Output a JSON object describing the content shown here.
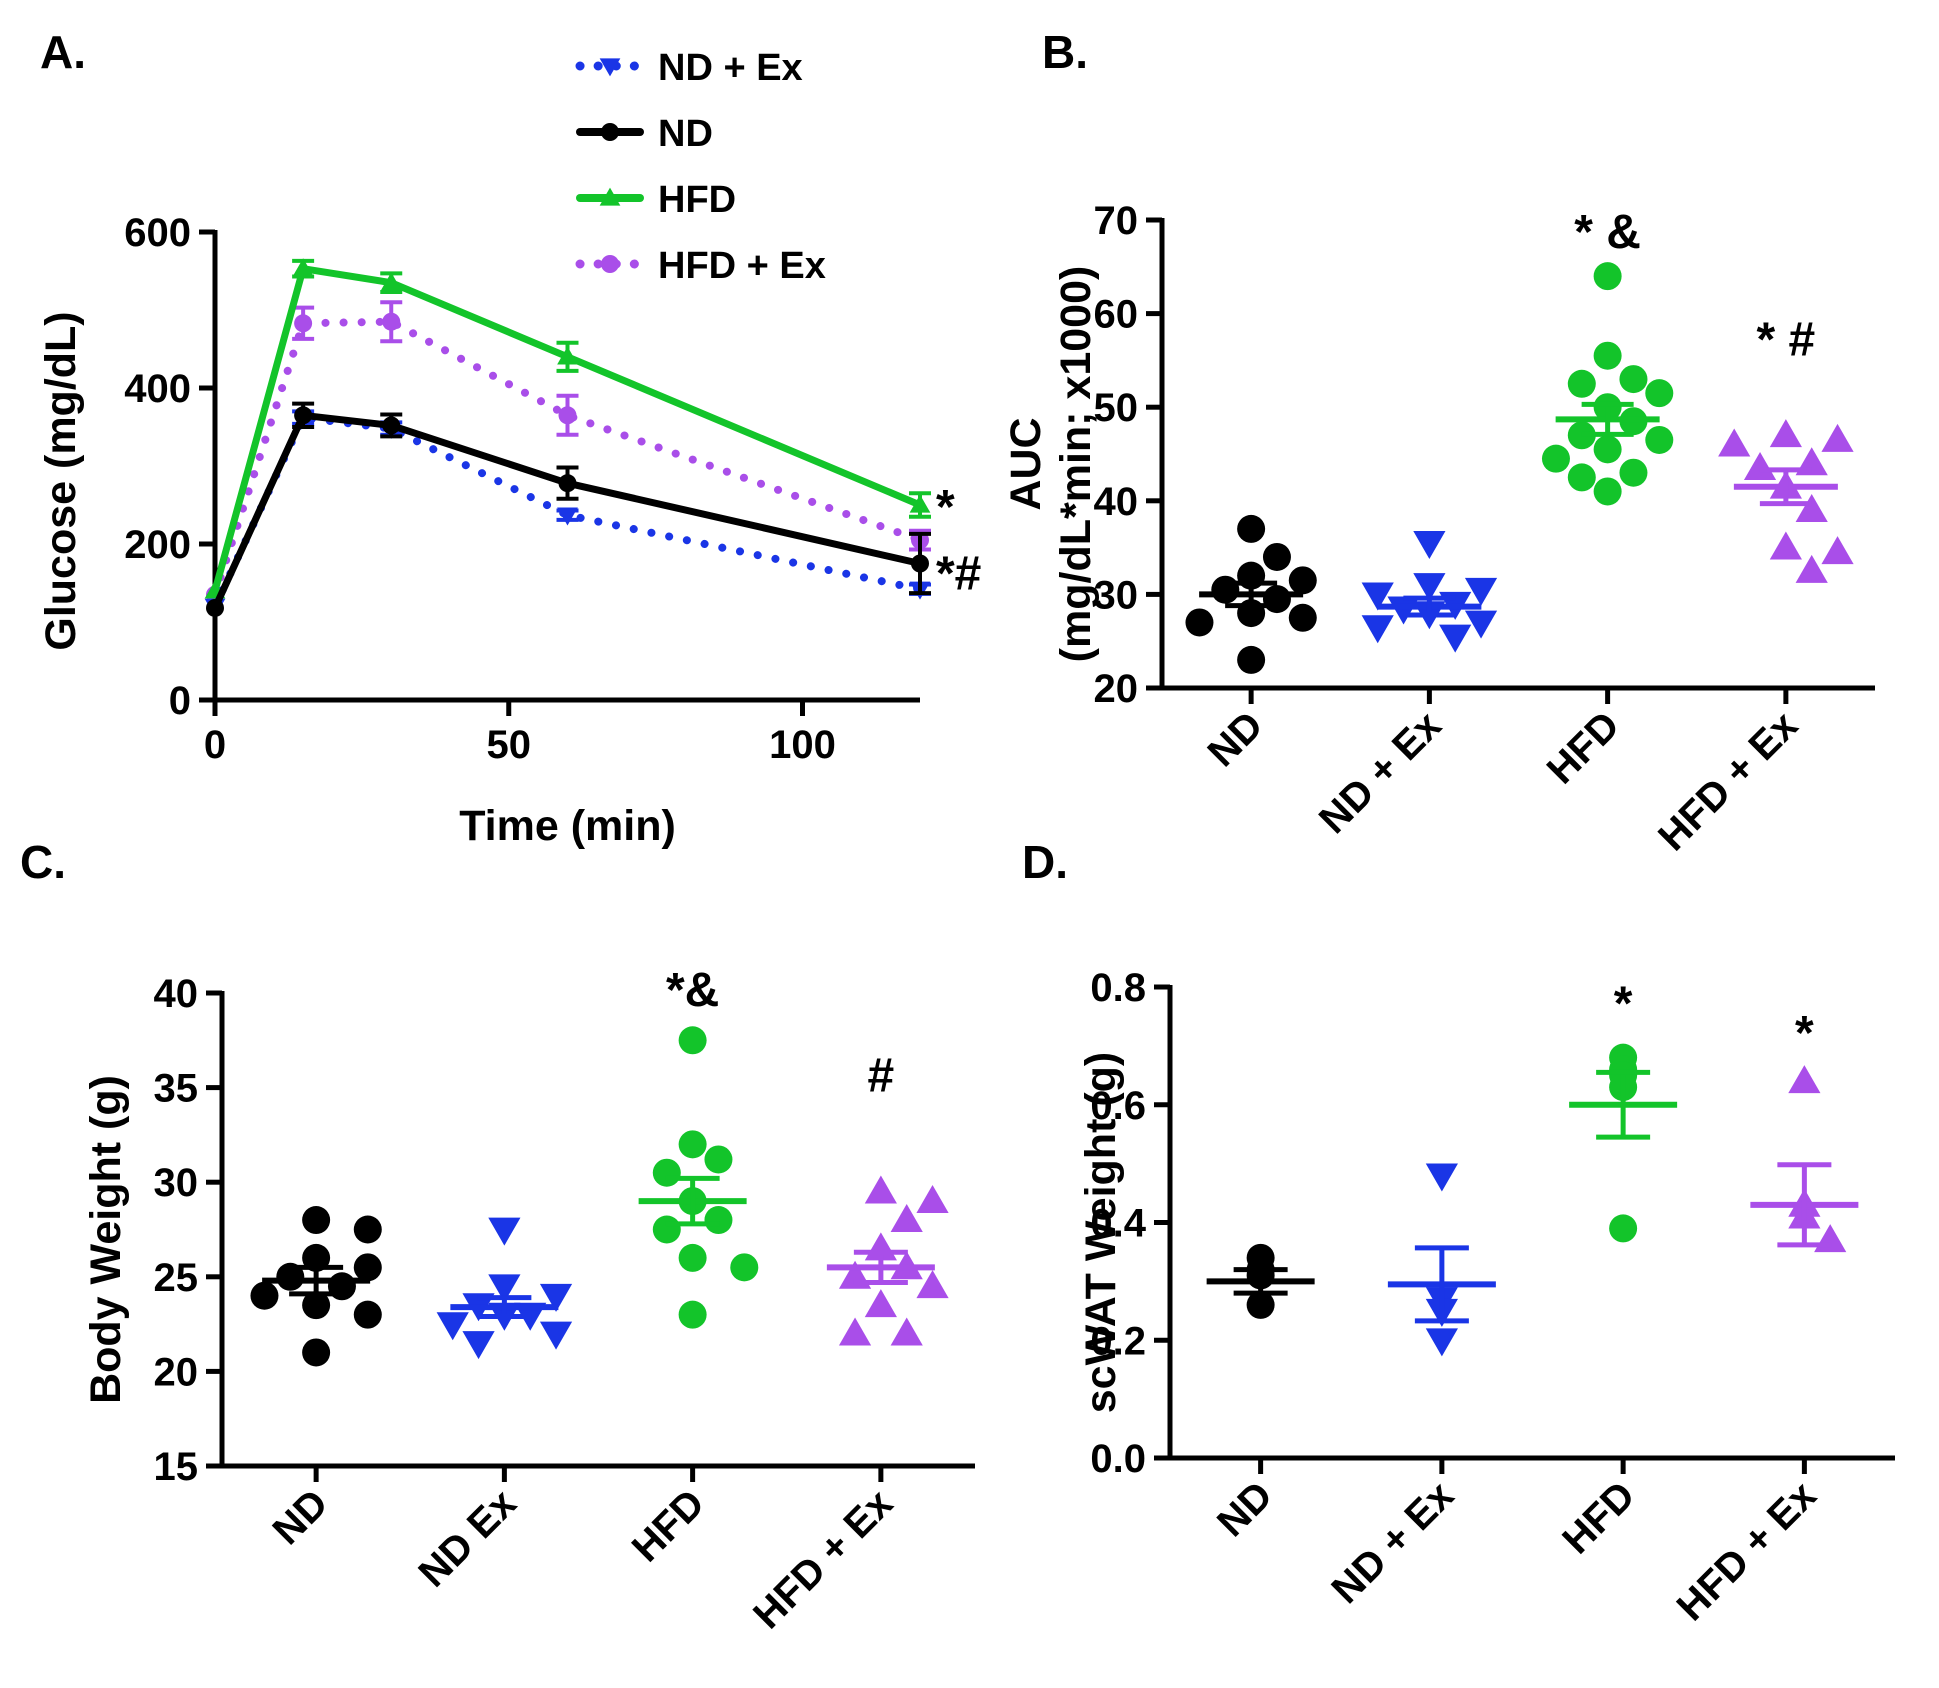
{
  "colors": {
    "ND": "#000000",
    "ND + Ex": "#1a35e6",
    "HFD": "#13c42a",
    "HFD + Ex": "#a94ee9"
  },
  "chart_data": [
    {
      "id": "A",
      "type": "line",
      "panel_label": "A.",
      "xlabel": "Time (min)",
      "ylabel": "Glucose (mg/dL)",
      "xlim": [
        0,
        120
      ],
      "ylim": [
        0,
        600
      ],
      "xticks": [
        0,
        50,
        100
      ],
      "yticks": [
        0,
        200,
        400,
        600
      ],
      "legend": {
        "position": "top",
        "entries": [
          "ND + Ex",
          "ND",
          "HFD",
          "HFD + Ex"
        ]
      },
      "series": [
        {
          "name": "ND + Ex",
          "style": "dotted",
          "marker": "triangle-down",
          "x": [
            0,
            15,
            30,
            60,
            120
          ],
          "y": [
            120,
            362,
            348,
            237,
            142
          ],
          "err": [
            0,
            8,
            8,
            6,
            6
          ]
        },
        {
          "name": "ND",
          "style": "solid",
          "marker": "circle",
          "x": [
            0,
            15,
            30,
            60,
            120
          ],
          "y": [
            118,
            365,
            352,
            278,
            175
          ],
          "err": [
            0,
            15,
            14,
            20,
            38
          ]
        },
        {
          "name": "HFD",
          "style": "solid",
          "marker": "triangle-up",
          "x": [
            0,
            15,
            30,
            60,
            120
          ],
          "y": [
            140,
            553,
            535,
            440,
            250
          ],
          "err": [
            0,
            10,
            12,
            18,
            15
          ]
        },
        {
          "name": "HFD + Ex",
          "style": "dotted",
          "marker": "circle",
          "x": [
            0,
            15,
            30,
            60,
            120
          ],
          "y": [
            135,
            483,
            485,
            365,
            205
          ],
          "err": [
            0,
            20,
            25,
            25,
            12
          ]
        }
      ],
      "annotations": [
        {
          "text": "*",
          "series": "HFD"
        },
        {
          "text": "*#",
          "series": "ND"
        }
      ]
    },
    {
      "id": "B",
      "type": "scatter",
      "panel_label": "B.",
      "ylabel_lines": [
        "AUC",
        "(mg/dL*min; x1000)"
      ],
      "ylim": [
        20,
        70
      ],
      "yticks": [
        20,
        30,
        40,
        50,
        60,
        70
      ],
      "categories": [
        "ND",
        "ND + Ex",
        "HFD",
        "HFD + Ex"
      ],
      "groups": [
        {
          "name": "ND",
          "marker": "circle",
          "points": [
            37,
            34,
            32,
            31.5,
            30.5,
            29.5,
            28,
            27.5,
            27,
            23
          ],
          "mean": 30,
          "sem": 1.2
        },
        {
          "name": "ND + Ex",
          "marker": "triangle-down",
          "points": [
            35.5,
            31,
            30.5,
            30,
            29,
            28.5,
            28,
            27,
            26.5,
            25.5
          ],
          "mean": 28.7,
          "sem": 0.9
        },
        {
          "name": "HFD",
          "marker": "circle",
          "points": [
            64,
            55.5,
            53,
            52.5,
            51.5,
            50,
            48.5,
            47,
            46.5,
            45.5,
            44.5,
            43,
            42.5,
            41
          ],
          "mean": 48.7,
          "sem": 1.6
        },
        {
          "name": "HFD + Ex",
          "marker": "triangle-up",
          "points": [
            47,
            46.5,
            46,
            44,
            43.5,
            41.5,
            39,
            35,
            34.5,
            32.5
          ],
          "mean": 41.5,
          "sem": 1.8
        }
      ],
      "annotations": [
        {
          "group": "HFD",
          "text": "* &",
          "y": 67
        },
        {
          "group": "HFD + Ex",
          "text": "* #",
          "y": 55.5
        }
      ]
    },
    {
      "id": "C",
      "type": "scatter",
      "panel_label": "C.",
      "ylabel": "Body Weight (g)",
      "ylim": [
        15,
        40
      ],
      "yticks": [
        15,
        20,
        25,
        30,
        35,
        40
      ],
      "categories": [
        "ND",
        "ND Ex",
        "HFD",
        "HFD + Ex"
      ],
      "groups": [
        {
          "name": "ND",
          "marker": "circle",
          "points": [
            28,
            27.5,
            26,
            25.5,
            25,
            24.5,
            24,
            23.5,
            23,
            21
          ],
          "mean": 24.8,
          "sem": 0.7
        },
        {
          "name": "ND Ex",
          "marker": "triangle-down",
          "points": [
            27.5,
            24.5,
            24,
            23.5,
            23,
            23,
            22.5,
            22,
            21.5
          ],
          "mean": 23.4,
          "sem": 0.5
        },
        {
          "name": "HFD",
          "marker": "circle",
          "points": [
            37.5,
            32,
            31.2,
            30.5,
            29,
            28,
            27.5,
            26,
            25.5,
            23
          ],
          "mean": 29,
          "sem": 1.2
        },
        {
          "name": "HFD + Ex",
          "marker": "triangle-up",
          "points": [
            29.5,
            29,
            28,
            26.5,
            25.5,
            25,
            24.5,
            23.5,
            22,
            22
          ],
          "mean": 25.5,
          "sem": 0.8
        }
      ],
      "annotations": [
        {
          "group": "HFD",
          "text": "*&",
          "y": 39.3
        },
        {
          "group": "HFD + Ex",
          "text": "#",
          "y": 34.8
        }
      ]
    },
    {
      "id": "D",
      "type": "scatter",
      "panel_label": "D.",
      "ylabel": "scWAT Weight (g)",
      "ylim": [
        0.0,
        0.8
      ],
      "yticks": [
        0.0,
        0.2,
        0.4,
        0.6,
        0.8
      ],
      "categories": [
        "ND",
        "ND + Ex",
        "HFD",
        "HFD + Ex"
      ],
      "groups": [
        {
          "name": "ND",
          "marker": "circle",
          "points": [
            0.34,
            0.32,
            0.31,
            0.26
          ],
          "mean": 0.3,
          "sem": 0.02
        },
        {
          "name": "ND + Ex",
          "marker": "triangle-down",
          "points": [
            0.48,
            0.27,
            0.25,
            0.2
          ],
          "mean": 0.295,
          "sem": 0.062
        },
        {
          "name": "HFD",
          "marker": "circle",
          "points": [
            0.68,
            0.66,
            0.65,
            0.63,
            0.39
          ],
          "mean": 0.6,
          "sem": 0.055
        },
        {
          "name": "HFD + Ex",
          "marker": "triangle-up",
          "points": [
            0.64,
            0.43,
            0.41,
            0.37
          ],
          "mean": 0.43,
          "sem": 0.068
        }
      ],
      "annotations": [
        {
          "group": "HFD",
          "text": "*",
          "y": 0.745
        },
        {
          "group": "HFD + Ex",
          "text": "*",
          "y": 0.695
        }
      ]
    }
  ]
}
